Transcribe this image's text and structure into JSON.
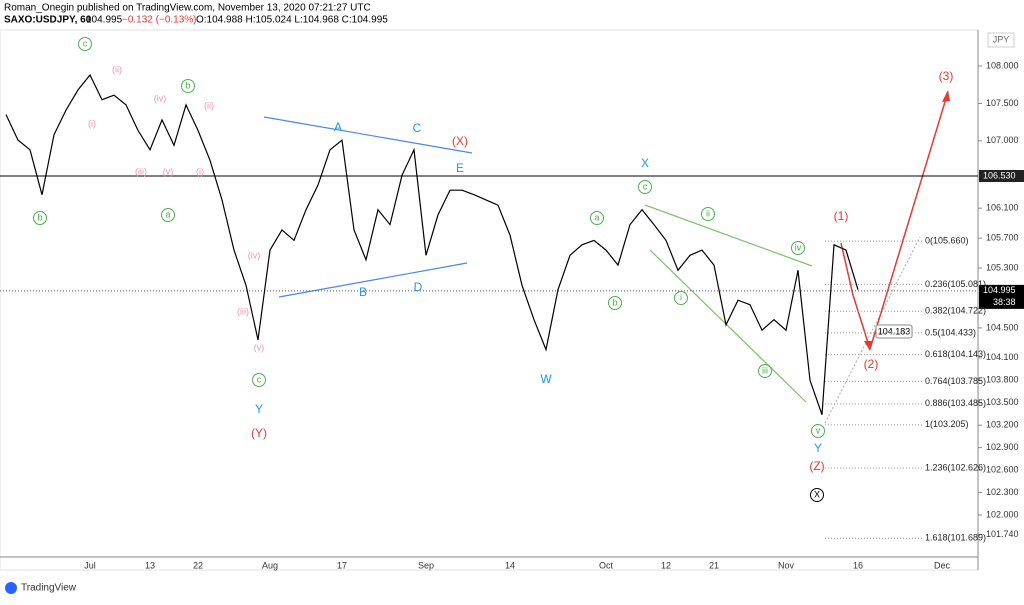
{
  "header": {
    "publisher": "Roman_Onegin published on TradingView.com, November 13, 2020 07:21:27 UTC",
    "symbol": "SAXO:USDJPY, 60",
    "price": "104.995",
    "change": "−0.132 (−0.13%)",
    "ohlc": "O:104.988 H:105.024 L:104.968 C:104.995"
  },
  "footer": {
    "brand": "TradingView"
  },
  "chart_data": {
    "type": "line",
    "color": "#000000",
    "currency": "JPY",
    "categories": [
      null,
      null,
      null,
      null,
      null,
      null,
      null,
      "Jul",
      null,
      null,
      null,
      null,
      "13",
      null,
      null,
      null,
      "22",
      null,
      null,
      null,
      null,
      null,
      "Aug",
      null,
      null,
      null,
      null,
      null,
      "17",
      null,
      null,
      null,
      null,
      null,
      null,
      "Sep",
      null,
      null,
      null,
      null,
      null,
      null,
      "14",
      null,
      null,
      null,
      null,
      null,
      null,
      null,
      "Oct",
      null,
      null,
      null,
      null,
      "12",
      null,
      null,
      null,
      "21",
      null,
      null,
      null,
      null,
      null,
      "Nov",
      null,
      null,
      null,
      null,
      null,
      "16",
      null,
      null,
      null,
      null,
      null,
      null,
      "Dec",
      null,
      null
    ],
    "values": [
      107.35,
      107.01,
      106.88,
      106.28,
      107.08,
      107.41,
      107.68,
      107.88,
      107.55,
      107.61,
      107.48,
      107.14,
      106.88,
      107.28,
      106.94,
      107.48,
      107.14,
      106.74,
      106.21,
      105.54,
      105.07,
      104.34,
      105.54,
      105.81,
      105.67,
      106.08,
      106.41,
      106.88,
      107.01,
      105.81,
      105.41,
      106.08,
      105.88,
      106.54,
      106.88,
      105.47,
      106.01,
      106.34,
      106.34,
      106.28,
      106.21,
      106.14,
      105.74,
      105.07,
      104.61,
      104.21,
      105.01,
      105.47,
      105.61,
      105.67,
      105.54,
      105.34,
      105.88,
      106.08,
      105.88,
      105.67,
      105.27,
      105.47,
      105.54,
      105.34,
      104.54,
      104.87,
      104.81,
      104.47,
      104.61,
      104.47,
      105.27,
      103.8,
      103.34,
      105.61,
      105.54,
      105.01,
      null,
      null,
      null,
      null,
      null,
      null,
      null,
      null,
      null
    ],
    "ylim": [
      101.265,
      108.481
    ],
    "yticks": [
      {
        "value": 108,
        "label": "108.000"
      },
      {
        "value": 107.5,
        "label": "107.500"
      },
      {
        "value": 107,
        "label": "107.000"
      },
      {
        "value": 106.1,
        "label": "106.100"
      },
      {
        "value": 105.7,
        "label": "105.700"
      },
      {
        "value": 105.3,
        "label": "105.300"
      },
      {
        "value": 104.5,
        "label": "104.500"
      },
      {
        "value": 104.1,
        "label": "104.100"
      },
      {
        "value": 103.8,
        "label": "103.800"
      },
      {
        "value": 103.5,
        "label": "103.500"
      },
      {
        "value": 103.2,
        "label": "103.200"
      },
      {
        "value": 102.9,
        "label": "102.900"
      },
      {
        "value": 102.6,
        "label": "102.600"
      },
      {
        "value": 102.3,
        "label": "102.300"
      },
      {
        "value": 102,
        "label": "102.000"
      },
      {
        "value": 101.74,
        "label": "101.740"
      }
    ],
    "resistance": {
      "value": 106.53,
      "label": "106.530"
    },
    "last_price": {
      "value": 104.995,
      "label": "104.995"
    },
    "countdown": "38:38",
    "callout": "104.183",
    "fib_levels": [
      {
        "value": 105.66,
        "label": "0(105.660)"
      },
      {
        "value": 105.081,
        "label": "0.236(105.081)"
      },
      {
        "value": 104.722,
        "label": "0.382(104.722)"
      },
      {
        "value": 104.433,
        "label": "0.5(104.433)"
      },
      {
        "value": 104.143,
        "label": "0.618(104.143)"
      },
      {
        "value": 103.785,
        "label": "0.764(103.785)"
      },
      {
        "value": 103.485,
        "label": "0.886(103.485)"
      },
      {
        "value": 103.205,
        "label": "1(103.205)"
      },
      {
        "value": 102.626,
        "label": "1.236(102.626)"
      },
      {
        "value": 101.689,
        "label": "1.618(101.689)"
      }
    ],
    "annotations": [
      "c",
      "b",
      "b",
      "a",
      "c",
      "a",
      "b",
      "c",
      "ii",
      "iv",
      "i",
      "iii",
      "v",
      "(ii)",
      "(i)",
      "(iv)",
      "(ii)",
      "(iii)",
      "(v)",
      "(i)",
      "(iv)",
      "(iii)",
      "(v)",
      "A",
      "C",
      "E",
      "B",
      "D",
      "X",
      "W",
      "Y",
      "Y",
      "(X)",
      "(Y)",
      "(1)",
      "(2)",
      "(3)",
      "(Z)",
      "X"
    ]
  }
}
